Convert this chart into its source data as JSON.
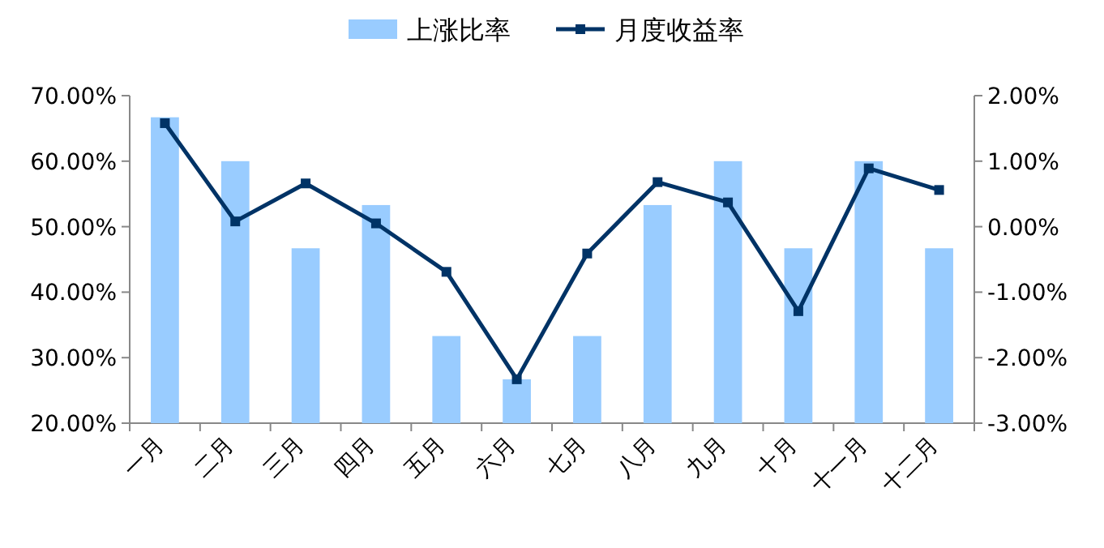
{
  "chart_data": {
    "type": "bar",
    "categories": [
      "一月",
      "二月",
      "三月",
      "四月",
      "五月",
      "六月",
      "七月",
      "八月",
      "九月",
      "十月",
      "十一月",
      "十二月"
    ],
    "series": [
      {
        "name": "上涨比率",
        "color": "#99ccff",
        "values": [
          66.7,
          60,
          46.7,
          53.3,
          33.3,
          26.7,
          33.3,
          53.3,
          60,
          46.7,
          60,
          46.7
        ]
      },
      {
        "name": "月度收益率",
        "type": "line",
        "axis": "y2",
        "color": "#003366",
        "marker": "square",
        "values": [
          1.58,
          0.08,
          0.66,
          0.05,
          -0.69,
          -2.33,
          -0.41,
          0.68,
          0.37,
          -1.29,
          0.89,
          0.56
        ]
      }
    ],
    "ylim": [
      20,
      70
    ],
    "yticks": [
      {
        "value": 20,
        "label": "20.00%"
      },
      {
        "value": 30,
        "label": "30.00%"
      },
      {
        "value": 40,
        "label": "40.00%"
      },
      {
        "value": 50,
        "label": "50.00%"
      },
      {
        "value": 60,
        "label": "60.00%"
      },
      {
        "value": 70,
        "label": "70.00%"
      }
    ],
    "y2lim": [
      -3,
      2
    ],
    "y2ticks": [
      {
        "value": -3,
        "label": "-3.00%"
      },
      {
        "value": -2,
        "label": "-2.00%"
      },
      {
        "value": -1,
        "label": "-1.00%"
      },
      {
        "value": 0,
        "label": "0.00%"
      },
      {
        "value": 1,
        "label": "1.00%"
      },
      {
        "value": 2,
        "label": "2.00%"
      }
    ],
    "legend": "top",
    "grid": false
  }
}
